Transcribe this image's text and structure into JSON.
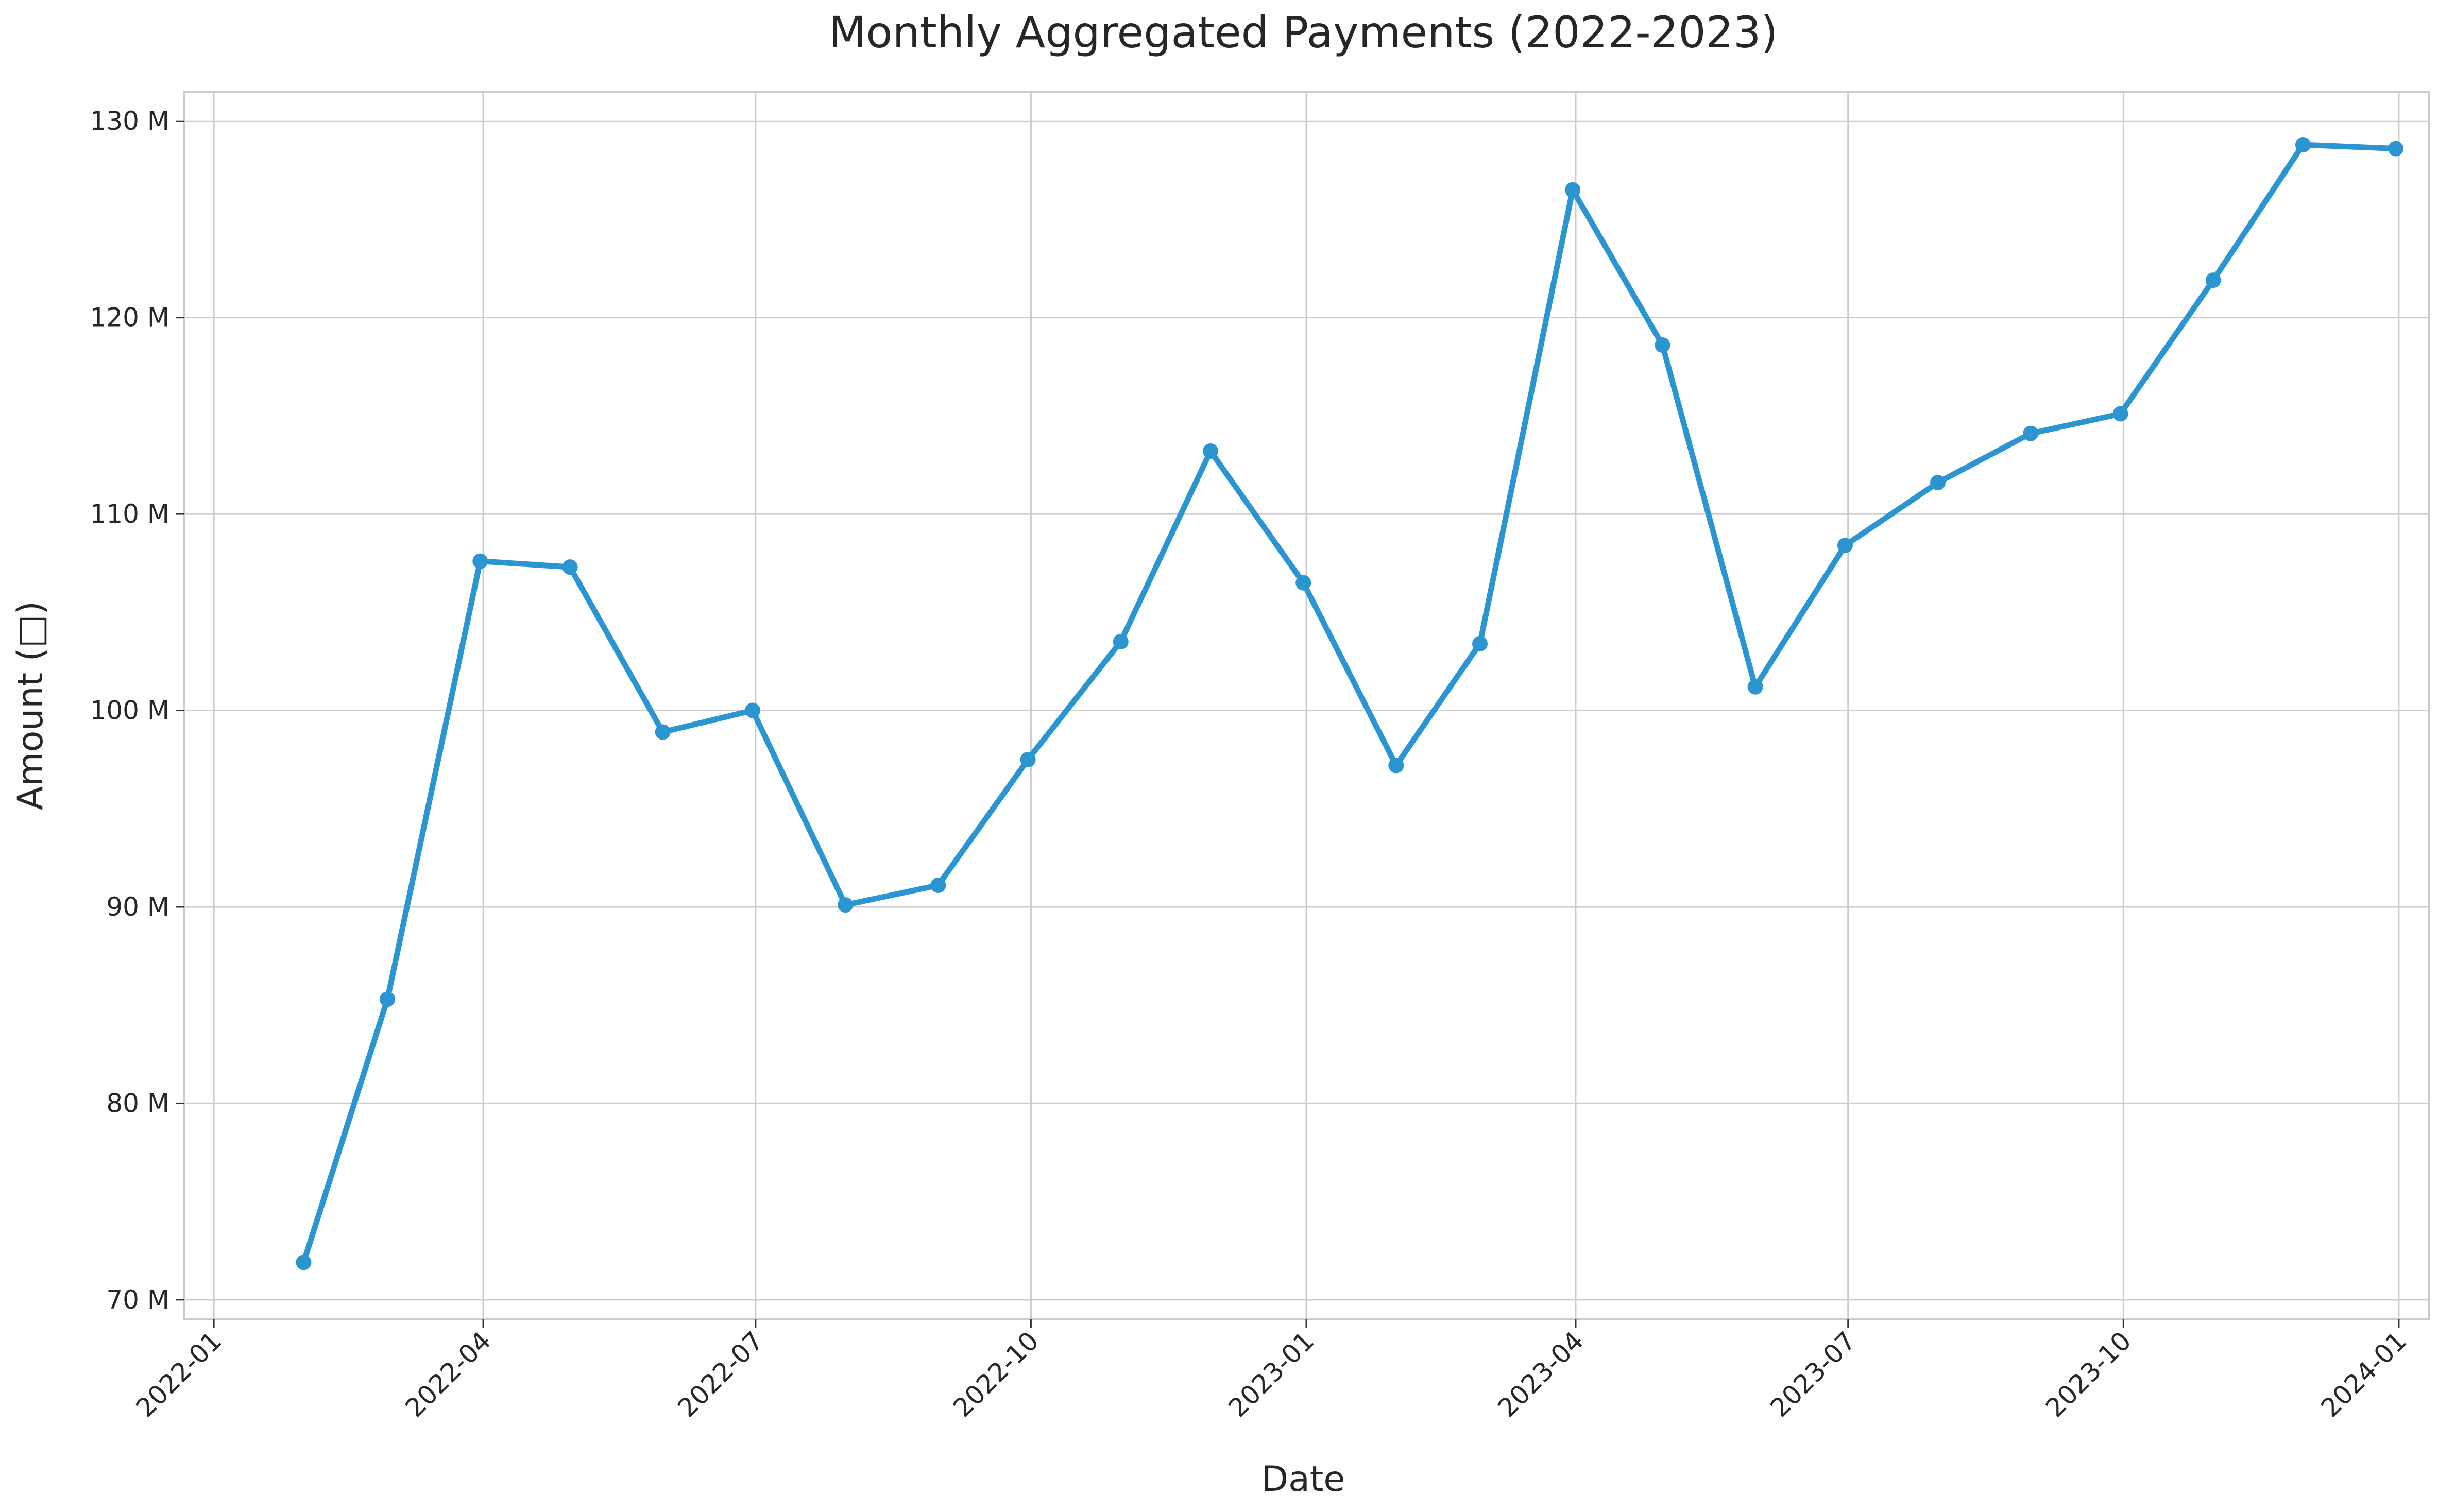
{
  "chart_data": {
    "type": "line",
    "title": "Monthly Aggregated Payments (2022-2023)",
    "xlabel": "Date",
    "ylabel": "Amount (□)",
    "x_axis_type": "date",
    "xlim": [
      "2021-12-22",
      "2024-01-11"
    ],
    "ylim": [
      69.0,
      131.5
    ],
    "x_ticks": [
      "2022-01-01",
      "2022-04-01",
      "2022-07-01",
      "2022-10-01",
      "2023-01-01",
      "2023-04-01",
      "2023-07-01",
      "2023-10-01",
      "2024-01-01"
    ],
    "x_tick_labels": [
      "2022-01",
      "2022-04",
      "2022-07",
      "2022-10",
      "2023-01",
      "2023-04",
      "2023-07",
      "2023-10",
      "2024-01"
    ],
    "y_ticks": [
      70,
      80,
      90,
      100,
      110,
      120,
      130
    ],
    "y_tick_labels": [
      "70 M",
      "80 M",
      "90 M",
      "100 M",
      "110 M",
      "120 M",
      "130 M"
    ],
    "grid": true,
    "legend": false,
    "color": "#2b95d1",
    "series": [
      {
        "x": [
          "2022-01-31",
          "2022-02-28",
          "2022-03-31",
          "2022-04-30",
          "2022-05-31",
          "2022-06-30",
          "2022-07-31",
          "2022-08-31",
          "2022-09-30",
          "2022-10-31",
          "2022-11-30",
          "2022-12-31",
          "2023-01-31",
          "2023-02-28",
          "2023-03-31",
          "2023-04-30",
          "2023-05-31",
          "2023-06-30",
          "2023-07-31",
          "2023-08-31",
          "2023-09-30",
          "2023-10-31",
          "2023-11-30",
          "2023-12-31"
        ],
        "values": [
          71.9,
          85.3,
          107.6,
          107.3,
          98.9,
          100.0,
          90.1,
          91.1,
          97.5,
          103.5,
          113.2,
          106.5,
          97.2,
          103.4,
          126.5,
          118.6,
          101.2,
          108.4,
          111.6,
          114.1,
          115.1,
          121.9,
          128.8,
          128.6
        ]
      }
    ]
  }
}
